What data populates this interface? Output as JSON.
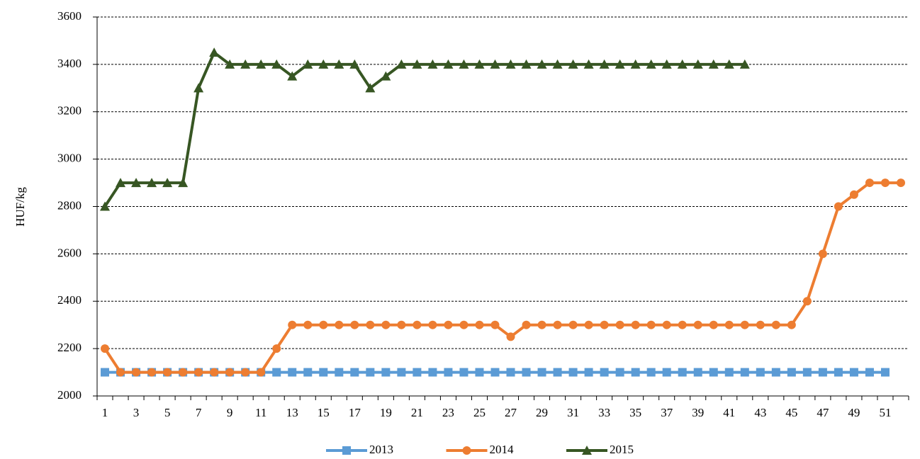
{
  "chart_data": {
    "type": "line",
    "y_label": "HUF/kg",
    "categories": [
      1,
      null,
      3,
      null,
      5,
      null,
      7,
      null,
      9,
      null,
      11,
      null,
      13,
      null,
      15,
      null,
      17,
      null,
      19,
      null,
      21,
      null,
      23,
      null,
      25,
      null,
      27,
      null,
      29,
      null,
      31,
      null,
      33,
      null,
      35,
      null,
      37,
      null,
      39,
      null,
      41,
      null,
      43,
      null,
      45,
      null,
      47,
      null,
      49,
      null,
      51,
      null
    ],
    "series": [
      {
        "name": "2013",
        "color": "#5b9bd5",
        "marker": "square",
        "values": [
          2100,
          2100,
          2100,
          2100,
          2100,
          2100,
          2100,
          2100,
          2100,
          2100,
          2100,
          2100,
          2100,
          2100,
          2100,
          2100,
          2100,
          2100,
          2100,
          2100,
          2100,
          2100,
          2100,
          2100,
          2100,
          2100,
          2100,
          2100,
          2100,
          2100,
          2100,
          2100,
          2100,
          2100,
          2100,
          2100,
          2100,
          2100,
          2100,
          2100,
          2100,
          2100,
          2100,
          2100,
          2100,
          2100,
          2100,
          2100,
          2100,
          2100,
          2100,
          null
        ]
      },
      {
        "name": "2014",
        "color": "#ed7d31",
        "marker": "circle",
        "values": [
          2200,
          2100,
          2100,
          2100,
          2100,
          2100,
          2100,
          2100,
          2100,
          2100,
          2100,
          2200,
          2300,
          2300,
          2300,
          2300,
          2300,
          2300,
          2300,
          2300,
          2300,
          2300,
          2300,
          2300,
          2300,
          2300,
          2250,
          2300,
          2300,
          2300,
          2300,
          2300,
          2300,
          2300,
          2300,
          2300,
          2300,
          2300,
          2300,
          2300,
          2300,
          2300,
          2300,
          2300,
          2300,
          2400,
          2600,
          2800,
          2850,
          2900,
          2900,
          2900
        ]
      },
      {
        "name": "2015",
        "color": "#375623",
        "marker": "triangle",
        "values": [
          2800,
          2900,
          2900,
          2900,
          2900,
          2900,
          3300,
          3450,
          3400,
          3400,
          3400,
          3400,
          3350,
          3400,
          3400,
          3400,
          3400,
          3300,
          3350,
          3400,
          3400,
          3400,
          3400,
          3400,
          3400,
          3400,
          3400,
          3400,
          3400,
          3400,
          3400,
          3400,
          3400,
          3400,
          3400,
          3400,
          3400,
          3400,
          3400,
          3400,
          3400,
          3400,
          null,
          null,
          null,
          null,
          null,
          null,
          null,
          null,
          null,
          null
        ]
      }
    ],
    "ylim": [
      2000,
      3600
    ],
    "yticks": [
      2000,
      2200,
      2400,
      2600,
      2800,
      3000,
      3200,
      3400,
      3600
    ],
    "grid": true,
    "legend": "bottom"
  }
}
